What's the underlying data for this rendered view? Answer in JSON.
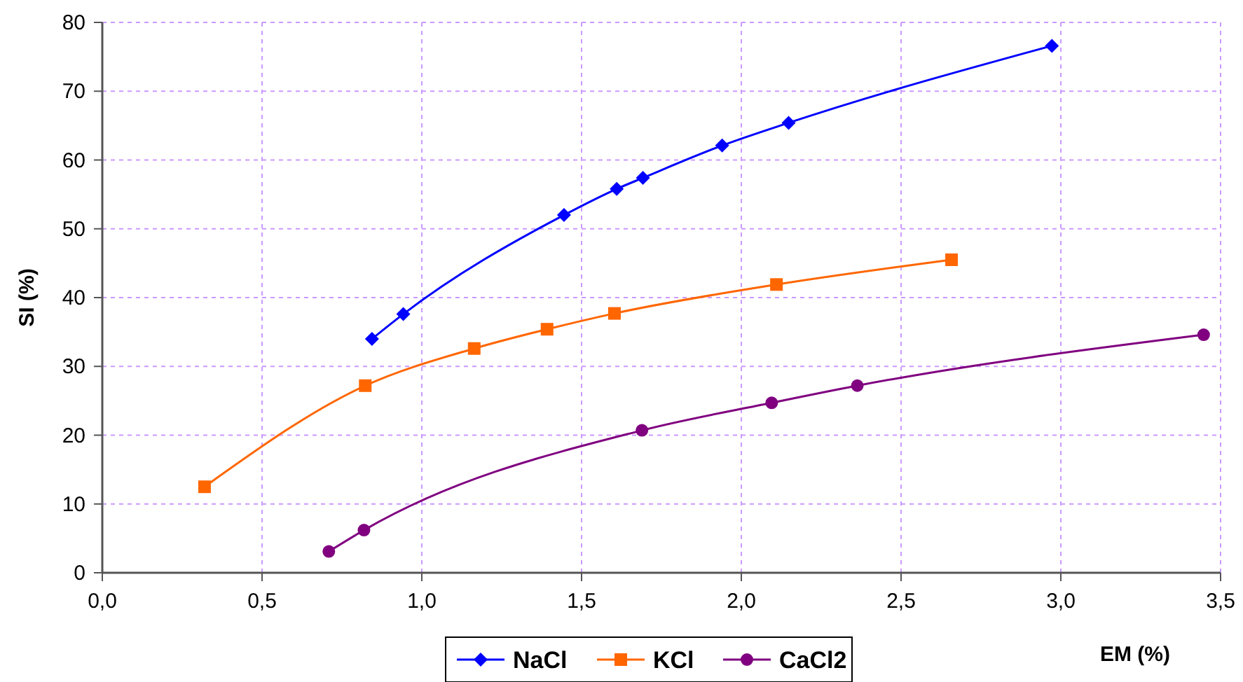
{
  "chart_data": {
    "type": "line",
    "xlabel": "EM (%)",
    "ylabel": "SI (%)",
    "xlim": [
      0,
      3.5
    ],
    "xticks": [
      {
        "value": 0,
        "label": "0,0"
      },
      {
        "value": 0.5,
        "label": "0,5"
      },
      {
        "value": 1,
        "label": "1,0"
      },
      {
        "value": 1.5,
        "label": "1,5"
      },
      {
        "value": 2,
        "label": "2,0"
      },
      {
        "value": 2.5,
        "label": "2,5"
      },
      {
        "value": 3,
        "label": "3,0"
      },
      {
        "value": 3.5,
        "label": "3,5"
      }
    ],
    "ylim": [
      0,
      80
    ],
    "yticks": [
      0,
      10,
      20,
      30,
      40,
      50,
      60,
      70,
      80
    ],
    "grid": true,
    "legend": "bottom",
    "series": [
      {
        "name": "NaCl",
        "color": "#0000ff",
        "marker": "diamond",
        "x": [
          0.844,
          0.942,
          1.445,
          1.61,
          1.692,
          1.94,
          2.148,
          2.972
        ],
        "values": [
          34.0,
          37.6,
          52.0,
          55.8,
          57.4,
          62.1,
          65.4,
          76.6
        ]
      },
      {
        "name": "KCl",
        "color": "#ff6600",
        "marker": "square",
        "x": [
          0.32,
          0.823,
          1.164,
          1.392,
          1.603,
          2.11,
          2.658
        ],
        "values": [
          12.5,
          27.2,
          32.6,
          35.4,
          37.7,
          41.9,
          45.5
        ]
      },
      {
        "name": "CaCl2",
        "color": "#800080",
        "marker": "circle",
        "x": [
          0.709,
          0.819,
          1.689,
          2.095,
          2.363,
          3.447
        ],
        "values": [
          3.1,
          6.2,
          20.7,
          24.7,
          27.2,
          34.6
        ]
      }
    ]
  }
}
